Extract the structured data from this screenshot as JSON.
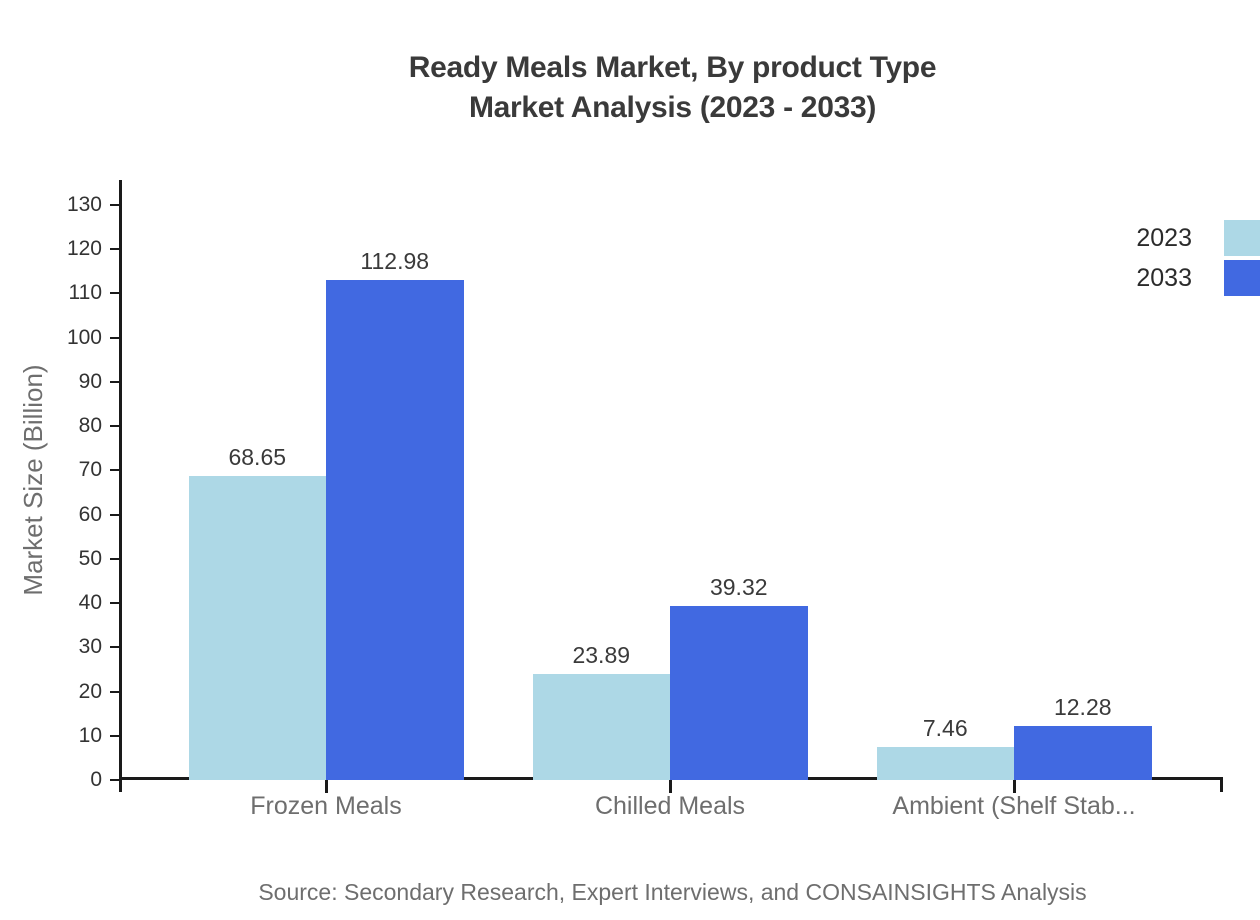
{
  "title": {
    "line1": "Ready Meals Market, By product Type",
    "line2": "Market Analysis (2023 - 2033)"
  },
  "source": "Source: Secondary Research, Expert Interviews, and CONSAINSIGHTS Analysis",
  "colors": {
    "series_2023": "#ADD8E6",
    "series_2033": "#4169E1",
    "axis": "#1a1a1a",
    "title_text": "#3a3a3a",
    "muted_text": "#6e6e6e"
  },
  "chart_data": {
    "type": "bar",
    "title": "Ready Meals Market, By product Type Market Analysis (2023 - 2033)",
    "categories": [
      "Frozen Meals",
      "Chilled Meals",
      "Ambient (Shelf Stab..."
    ],
    "series": [
      {
        "name": "2023",
        "color": "#ADD8E6",
        "values": [
          68.65,
          23.89,
          7.46
        ]
      },
      {
        "name": "2033",
        "color": "#4169E1",
        "values": [
          112.98,
          39.32,
          12.28
        ]
      }
    ],
    "xlabel": "",
    "ylabel": "Market Size (Billion)",
    "ylim": [
      0,
      130
    ],
    "ytick_step": 10,
    "y_ticks": [
      0,
      10,
      20,
      30,
      40,
      50,
      60,
      70,
      80,
      90,
      100,
      110,
      120,
      130
    ],
    "grid": false,
    "value_labels": true,
    "legend_position": "top-right"
  }
}
